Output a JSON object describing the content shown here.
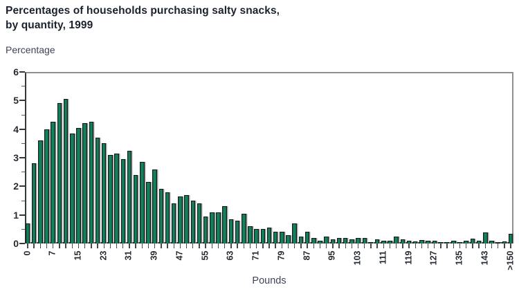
{
  "chart": {
    "title_line1": "Percentages of households purchasing salty snacks,",
    "title_line2": "by quantity, 1999",
    "ylabel": "Percentage",
    "xlabel": "Pounds"
  },
  "chart_data": {
    "type": "bar",
    "title": "Percentages of households purchasing salty snacks, by quantity, 1999",
    "xlabel": "Pounds",
    "ylabel": "Percentage",
    "ylim": [
      0,
      6
    ],
    "y_ticks": [
      0,
      1,
      2,
      3,
      4,
      5,
      6
    ],
    "grid": false,
    "legend": "none",
    "x_tick_labels": [
      "0",
      "7",
      "15",
      "23",
      "31",
      "39",
      "47",
      "55",
      "63",
      "71",
      "79",
      "87",
      "95",
      "103",
      "111",
      "119",
      "127",
      "135",
      "143",
      ">150"
    ],
    "x_label_every": 4,
    "n_bars": 77,
    "values": [
      0.7,
      2.8,
      3.6,
      4.0,
      4.25,
      4.9,
      5.05,
      3.85,
      4.05,
      4.2,
      4.25,
      3.7,
      3.5,
      3.1,
      3.15,
      2.95,
      3.25,
      2.4,
      2.85,
      2.15,
      2.6,
      1.9,
      1.8,
      1.4,
      1.65,
      1.7,
      1.5,
      1.4,
      0.95,
      1.1,
      1.1,
      1.3,
      0.85,
      0.8,
      1.05,
      0.6,
      0.5,
      0.5,
      0.55,
      0.4,
      0.4,
      0.3,
      0.7,
      0.25,
      0.4,
      0.2,
      0.1,
      0.25,
      0.15,
      0.2,
      0.2,
      0.15,
      0.2,
      0.2,
      0.05,
      0.15,
      0.1,
      0.1,
      0.25,
      0.15,
      0.1,
      0.07,
      0.13,
      0.1,
      0.1,
      0.05,
      0.05,
      0.1,
      0.05,
      0.1,
      0.17,
      0.1,
      0.38,
      0.1,
      0.03,
      0.07,
      0.35
    ],
    "bar_color": "#0d6d4e",
    "bar_highlight_color": "#17855f",
    "bar_border_color": "#161616",
    "frame_color": "#8d9093",
    "axis_color": "#33363a",
    "title_color": "#1b222c",
    "axis_title_color": "#3d4456"
  }
}
